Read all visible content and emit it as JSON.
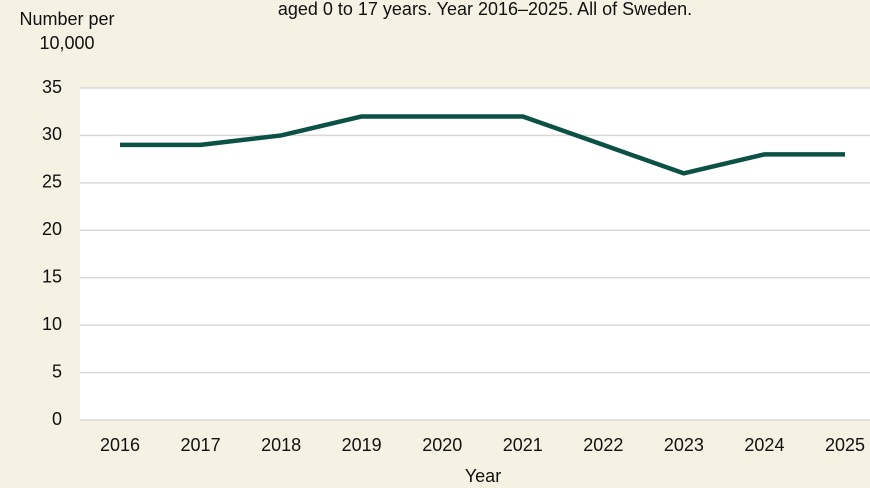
{
  "chart_data": {
    "type": "line",
    "title": "aged 0 to 17 years. Year 2016–2025. All of Sweden.",
    "y_label": [
      "Number per",
      "10,000"
    ],
    "x_label": "Year",
    "categories": [
      "2016",
      "2017",
      "2018",
      "2019",
      "2020",
      "2021",
      "2022",
      "2023",
      "2024",
      "2025"
    ],
    "series": [
      {
        "color": "#0c5146",
        "values": [
          29,
          29,
          30,
          32,
          32,
          32,
          29,
          26,
          28,
          28
        ]
      }
    ],
    "ylim": [
      0,
      35
    ],
    "yticks": [
      0,
      5,
      10,
      15,
      20,
      25,
      30,
      35
    ],
    "grid": true
  }
}
